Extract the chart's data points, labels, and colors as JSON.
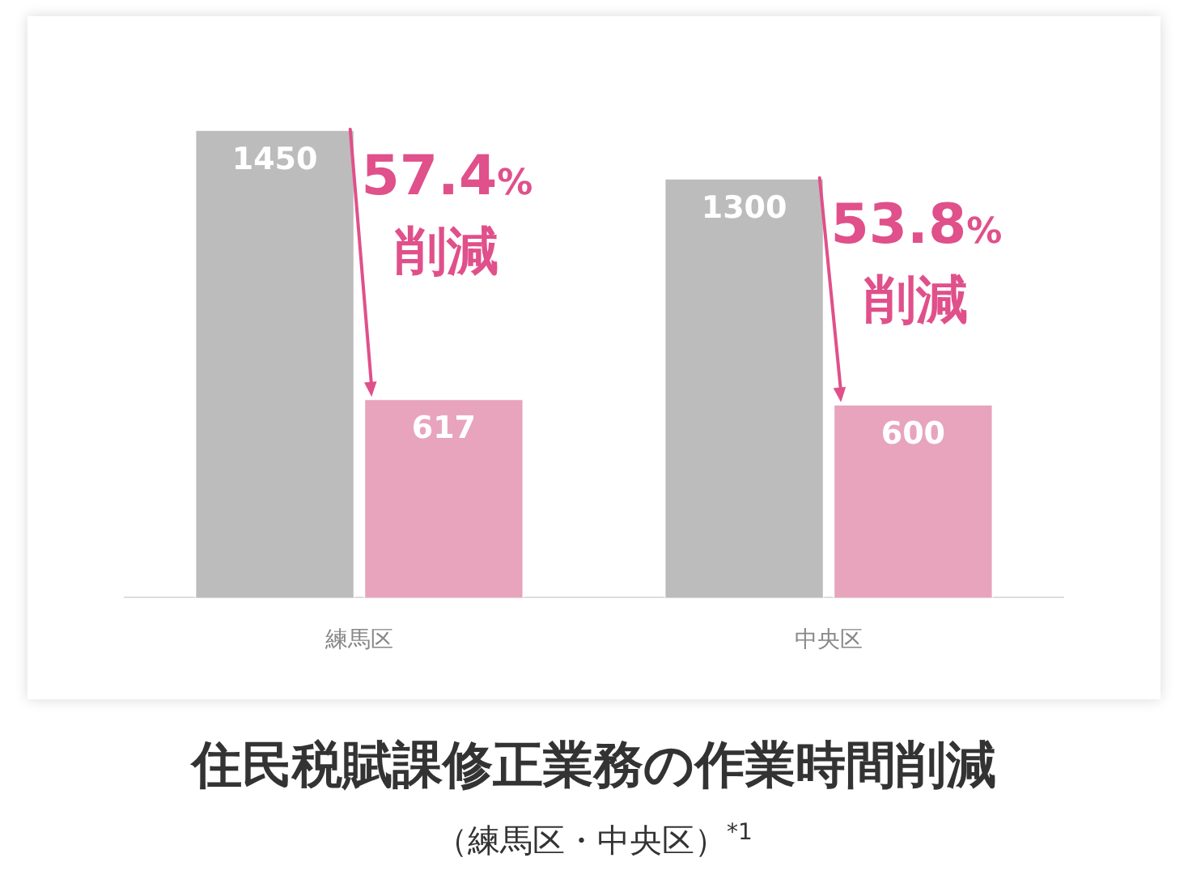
{
  "chart_data": {
    "type": "bar",
    "title": "住民税賦課修正業務の作業時間削減",
    "subtitle": "（練馬区・中央区）$^{*1}$",
    "categories": [
      "練馬区",
      "中央区"
    ],
    "series": [
      {
        "color": "#bcbcbc",
        "values": [
          1450,
          1300
        ]
      },
      {
        "color": "#e8a4bd",
        "values": [
          617,
          600
        ]
      }
    ],
    "data_labels": true,
    "grid": false,
    "legend": false,
    "tick_labels": "x",
    "annotations": [
      "57.4%削減",
      "53.8%削減"
    ]
  }
}
